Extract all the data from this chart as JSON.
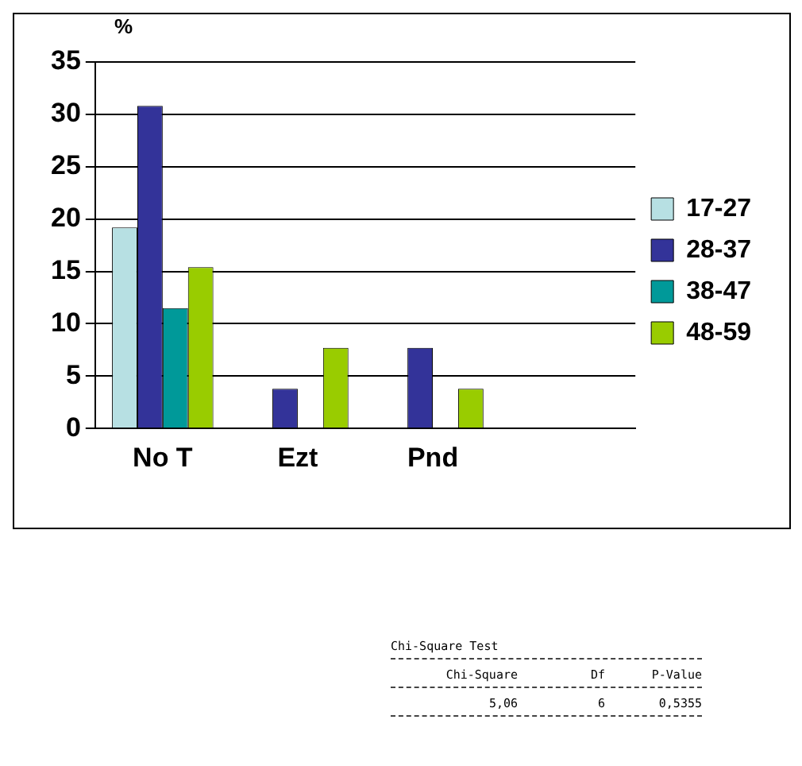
{
  "chart_data": {
    "type": "bar",
    "ylabel": "%",
    "categories": [
      "No T",
      "Ezt",
      "Pnd",
      null
    ],
    "series": [
      {
        "name": "17-27",
        "color": "#b7e0e3",
        "values": [
          19.2,
          0,
          0,
          null
        ]
      },
      {
        "name": "28-37",
        "color": "#333399",
        "values": [
          30.8,
          3.8,
          7.7,
          null
        ]
      },
      {
        "name": "38-47",
        "color": "#009999",
        "values": [
          11.5,
          0,
          0,
          null
        ]
      },
      {
        "name": "48-59",
        "color": "#99cc00",
        "values": [
          15.4,
          7.7,
          3.8,
          null
        ]
      }
    ],
    "ylim": [
      0,
      35
    ],
    "yticks": [
      0,
      5,
      10,
      15,
      20,
      25,
      30,
      35
    ],
    "grid": "y",
    "legend": "right",
    "annotations": [
      "Chi-Square Test",
      "Chi-Square",
      "Df",
      "P-Value",
      "5,06",
      "6",
      "0,5355"
    ]
  }
}
